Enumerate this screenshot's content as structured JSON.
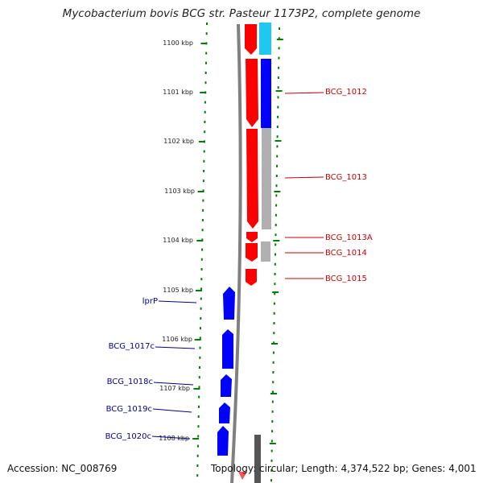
{
  "title": "Mycobacterium bovis BCG str. Pasteur 1173P2, complete genome",
  "footer": {
    "accession": "Accession: NC_008769",
    "summary": "Topology: circular; Length: 4,374,522 bp; Genes: 4,001"
  },
  "colors": {
    "forward_gene": "#ff0000",
    "reverse_gene": "#0000ff",
    "label_forward": "#cc0000",
    "label_reverse": "#000099",
    "ruler_dots": "#008000",
    "backbone": "#808080",
    "cyan_feature": "#1ec8f0",
    "grey_feature": "#b0b0b0"
  },
  "ruler_labels": [
    "1100 kbp",
    "1101 kbp",
    "1102 kbp",
    "1103 kbp",
    "1104 kbp",
    "1105 kbp",
    "1106 kbp",
    "1107 kbp",
    "1108 kbp"
  ],
  "gene_labels": {
    "bcg_1012": "BCG_1012",
    "bcg_1013": "BCG_1013",
    "bcg_1013a": "BCG_1013A",
    "bcg_1014": "BCG_1014",
    "bcg_1015": "BCG_1015",
    "lprp": "lprP",
    "bcg_1017c": "BCG_1017c",
    "bcg_1018c": "BCG_1018c",
    "bcg_1019c": "BCG_1019c",
    "bcg_1020c": "BCG_1020c"
  }
}
